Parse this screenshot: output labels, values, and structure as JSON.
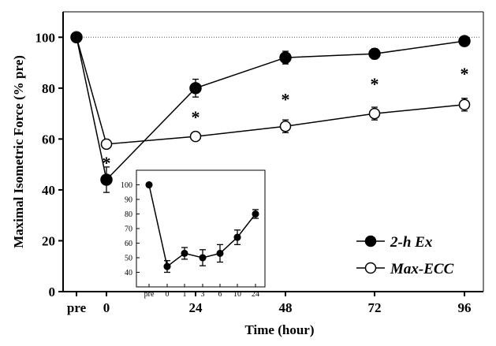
{
  "chart_data": [
    {
      "type": "line",
      "xlabel": "Time (hour)",
      "ylabel": "Maximal Isometric Force (% pre)",
      "ylim": [
        0,
        110
      ],
      "x_ticks": [
        "pre",
        "0",
        "24",
        "48",
        "72",
        "96"
      ],
      "y_ticks": [
        "0",
        "20",
        "40",
        "60",
        "80",
        "100"
      ],
      "reference_line": {
        "y": 100,
        "style": "dotted"
      },
      "legend": {
        "position": "bottom-right",
        "entries": [
          "2-h Ex",
          "Max-ECC"
        ]
      },
      "series": [
        {
          "name": "2-h Ex",
          "marker": "filled-circle",
          "points": [
            {
              "x": "pre",
              "y": 100,
              "err": 0
            },
            {
              "x": "0",
              "y": 44,
              "err": 5
            },
            {
              "x": "24",
              "y": 80,
              "err": 3.5
            },
            {
              "x": "48",
              "y": 92,
              "err": 2.5
            },
            {
              "x": "72",
              "y": 93.5,
              "err": 2
            },
            {
              "x": "96",
              "y": 98.5,
              "err": 1.5
            }
          ]
        },
        {
          "name": "Max-ECC",
          "marker": "open-circle",
          "points": [
            {
              "x": "pre",
              "y": 100,
              "err": 0
            },
            {
              "x": "0",
              "y": 58,
              "err": 1
            },
            {
              "x": "24",
              "y": 61,
              "err": 1.5
            },
            {
              "x": "48",
              "y": 65,
              "err": 2.5
            },
            {
              "x": "72",
              "y": 70,
              "err": 2.5
            },
            {
              "x": "96",
              "y": 73.5,
              "err": 2.5
            }
          ]
        }
      ],
      "annotations": [
        {
          "text": "*",
          "x": "0",
          "y": 52
        },
        {
          "text": "*",
          "x": "24",
          "y": 70
        },
        {
          "text": "*",
          "x": "48",
          "y": 77
        },
        {
          "text": "*",
          "x": "72",
          "y": 83
        },
        {
          "text": "*",
          "x": "96",
          "y": 87
        }
      ]
    },
    {
      "type": "line",
      "role": "inset",
      "ylim": [
        30,
        110
      ],
      "x_ticks": [
        "pre",
        "0",
        "1",
        "3",
        "6",
        "10",
        "24"
      ],
      "y_ticks": [
        "40",
        "50",
        "60",
        "70",
        "80",
        "90",
        "100"
      ],
      "series": [
        {
          "marker": "filled-circle",
          "points": [
            {
              "x": "pre",
              "y": 100,
              "err": 0
            },
            {
              "x": "0",
              "y": 44,
              "err": 4
            },
            {
              "x": "1",
              "y": 53,
              "err": 4
            },
            {
              "x": "3",
              "y": 50,
              "err": 5.5
            },
            {
              "x": "6",
              "y": 53,
              "err": 6
            },
            {
              "x": "10",
              "y": 64,
              "err": 5
            },
            {
              "x": "24",
              "y": 80,
              "err": 3
            }
          ]
        }
      ]
    }
  ]
}
